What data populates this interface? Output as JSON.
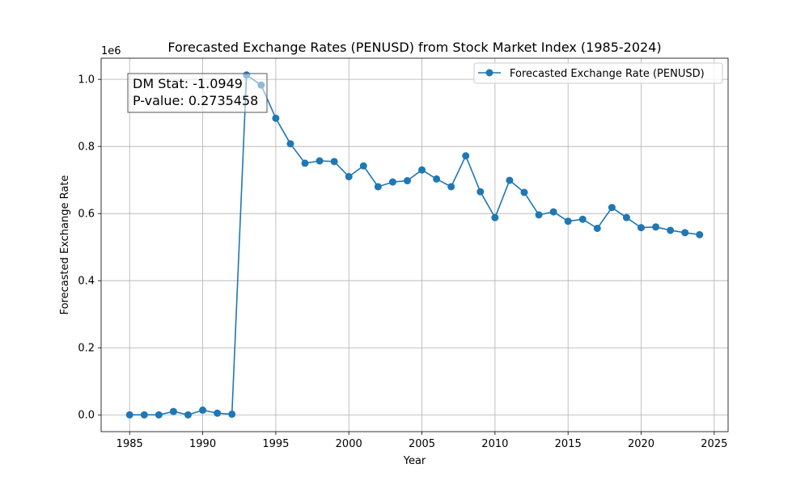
{
  "chart_data": {
    "type": "line",
    "title": "Forecasted Exchange Rates (PENUSD) from Stock Market Index (1985-2024)",
    "xlabel": "Year",
    "ylabel": "Forecasted Exchange Rate",
    "y_offset_text": "1e6",
    "xlim": [
      1983.05,
      2025.95
    ],
    "ylim": [
      -50000,
      1063000
    ],
    "x_ticks": [
      1985,
      1990,
      1995,
      2000,
      2005,
      2010,
      2015,
      2020,
      2025
    ],
    "y_ticks": [
      0,
      200000,
      400000,
      600000,
      800000,
      1000000
    ],
    "y_tick_labels": [
      "0.0",
      "0.2",
      "0.4",
      "0.6",
      "0.8",
      "1.0"
    ],
    "grid": true,
    "legend_position": "top-right",
    "series": [
      {
        "name": "Forecasted Exchange Rate (PENUSD)",
        "color": "#1f77b4",
        "marker": "circle",
        "x": [
          1985,
          1986,
          1987,
          1988,
          1989,
          1990,
          1991,
          1992,
          1993,
          1994,
          1995,
          1996,
          1997,
          1998,
          1999,
          2000,
          2001,
          2002,
          2003,
          2004,
          2005,
          2006,
          2007,
          2008,
          2009,
          2010,
          2011,
          2012,
          2013,
          2014,
          2015,
          2016,
          2017,
          2018,
          2019,
          2020,
          2021,
          2022,
          2023,
          2024
        ],
        "y": [
          0,
          0,
          0,
          10000,
          0,
          14000,
          5000,
          2000,
          1013000,
          983000,
          884000,
          808000,
          750000,
          757000,
          755000,
          710000,
          742000,
          680000,
          694000,
          698000,
          730000,
          703000,
          680000,
          772000,
          665000,
          588000,
          699000,
          663000,
          596000,
          605000,
          577000,
          583000,
          556000,
          618000,
          588000,
          558000,
          560000,
          550000,
          543000,
          537000
        ]
      }
    ],
    "annotation": {
      "lines": [
        "DM Stat: -1.0949",
        "P-value: 0.2735458"
      ],
      "position": "top-left"
    }
  }
}
